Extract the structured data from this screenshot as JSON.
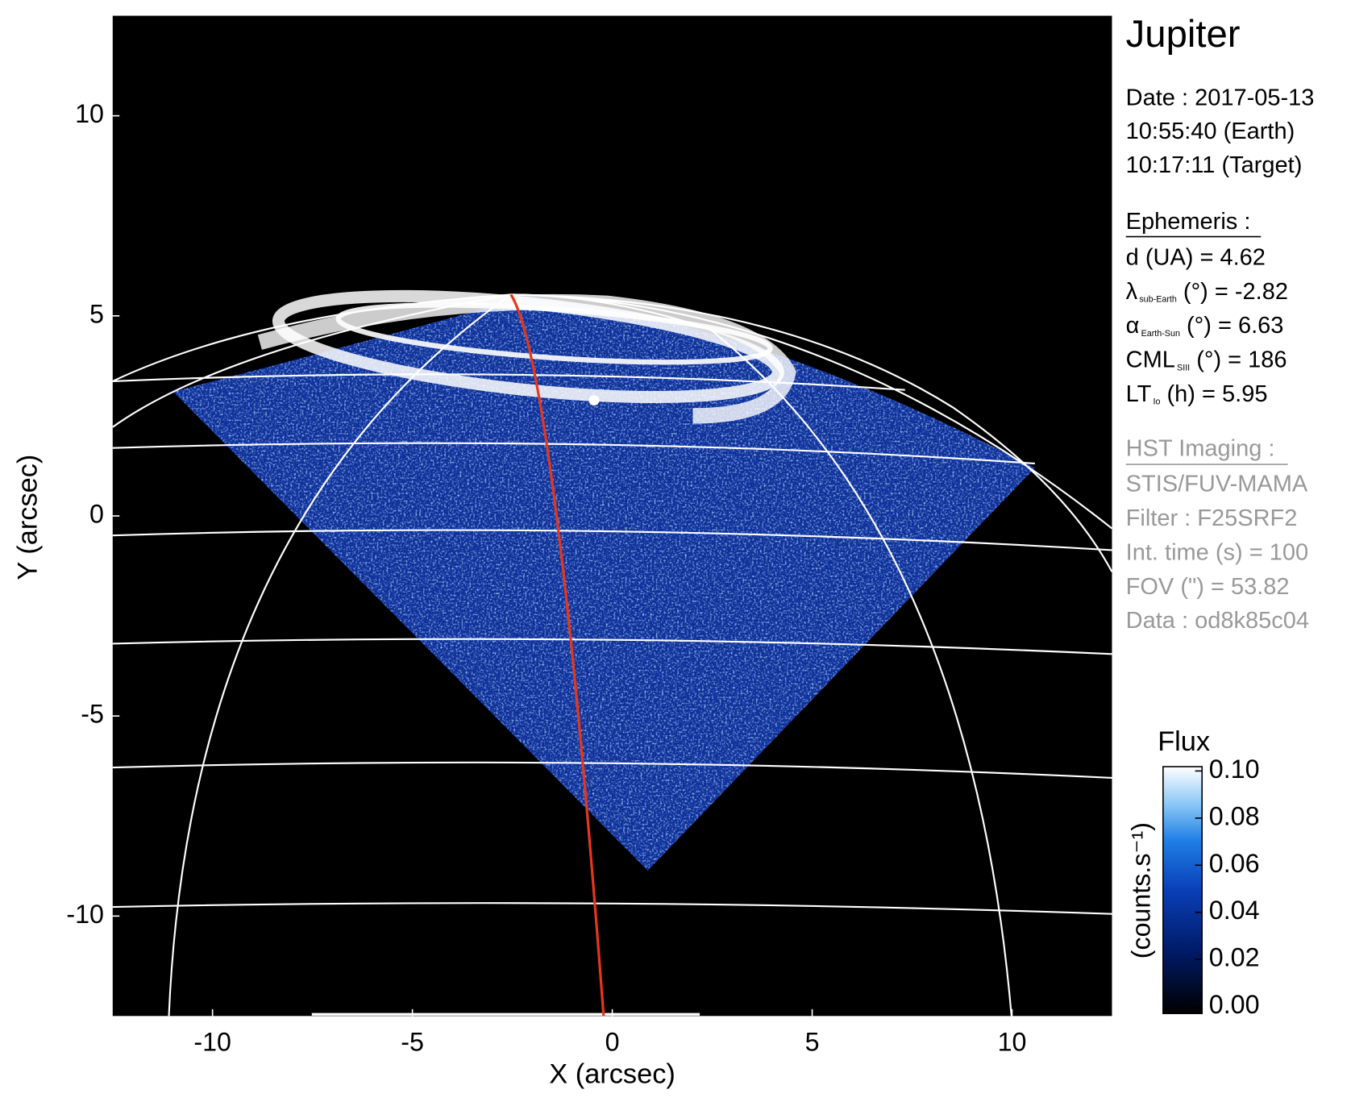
{
  "chart_data": {
    "type": "image",
    "xlabel": "X (arcsec)",
    "ylabel": "Y (arcsec)",
    "xlim": [
      -12.5,
      12.5
    ],
    "ylim": [
      -12.5,
      12.5
    ],
    "xticks": [
      -10,
      -5,
      0,
      5,
      10
    ],
    "yticks": [
      -10,
      -5,
      0,
      5,
      10
    ],
    "colorbar": {
      "title": "Flux",
      "label": "(counts.s⁻¹)",
      "lim": [
        0,
        0.1
      ],
      "ticks": [
        {
          "value": 0,
          "label": "0.00"
        },
        0.02,
        0.04,
        0.06,
        0.08,
        {
          "value": 0.1,
          "label": "0.10"
        }
      ]
    }
  },
  "panel": {
    "title": "Jupiter",
    "date": [
      "Date : 2017-05-13",
      "10:55:40 (Earth)",
      "10:17:11 (Target)"
    ],
    "ephemeris": {
      "heading": "Ephemeris :",
      "rows": [
        {
          "main": "d (UA)    = 4.62"
        },
        {
          "main": "λ",
          "sub": "sub-Earth",
          "rest": " (°) = -2.82"
        },
        {
          "main": "α",
          "sub": "Earth-Sun",
          "rest": " (°) = 6.63"
        },
        {
          "main": "CML",
          "sub": "SIII",
          "rest": " (°) = 186"
        },
        {
          "main": "LT",
          "sub": "Io",
          "rest": " (h) = 5.95"
        }
      ]
    },
    "imaging": {
      "heading": "HST Imaging :",
      "rows": [
        "STIS/FUV-MAMA",
        "Filter : F25SRF2",
        "Int. time (s) = 100",
        "FOV (\") = 53.82",
        "Data : od8k85c04"
      ]
    }
  }
}
